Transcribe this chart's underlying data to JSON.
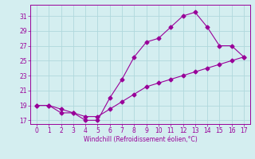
{
  "title": "",
  "xlabel": "Windchill (Refroidissement éolien,°C)",
  "x_data": [
    0,
    1,
    2,
    3,
    4,
    5,
    6,
    7,
    8,
    9,
    10,
    11,
    12,
    13,
    14,
    15,
    16,
    17
  ],
  "y_upper": [
    19,
    19,
    18,
    18,
    17,
    17,
    20,
    22.5,
    25.5,
    27.5,
    28,
    29.5,
    31,
    31.5,
    29.5,
    27,
    27,
    25.5
  ],
  "y_lower": [
    19,
    19,
    18.5,
    18,
    17.5,
    17.5,
    18.5,
    19.5,
    20.5,
    21.5,
    22,
    22.5,
    23,
    23.5,
    24,
    24.5,
    25,
    25.5
  ],
  "line_color": "#990099",
  "bg_color": "#d4eef0",
  "grid_color": "#b0d8dc",
  "ylim": [
    16.5,
    32.5
  ],
  "xlim": [
    -0.5,
    17.5
  ],
  "yticks": [
    17,
    19,
    21,
    23,
    25,
    27,
    29,
    31
  ],
  "xticks": [
    0,
    1,
    2,
    3,
    4,
    5,
    6,
    7,
    8,
    9,
    10,
    11,
    12,
    13,
    14,
    15,
    16,
    17
  ],
  "marker": "D",
  "markersize": 2.5,
  "linewidth": 0.8
}
